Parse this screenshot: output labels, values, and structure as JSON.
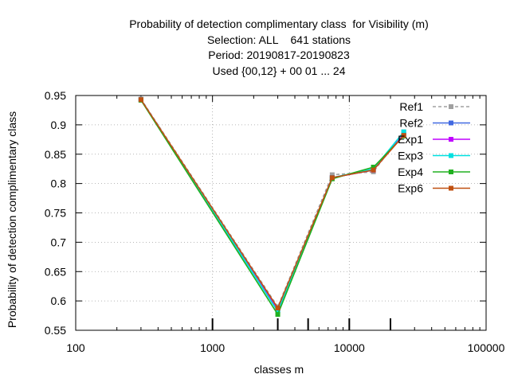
{
  "chart_data": {
    "type": "line",
    "title": [
      "Probability of detection complimentary class  for Visibility (m)",
      "Selection: ALL    641 stations",
      "Period: 20190817-20190823",
      "Used {00,12} + 00 01 ... 24"
    ],
    "xlabel": "classes m",
    "ylabel": "Probability of detection complimentary class",
    "xscale": "log",
    "xlim": [
      100,
      100000
    ],
    "ylim": [
      0.55,
      0.95
    ],
    "x_ticks": [
      "100",
      "1000",
      "10000",
      "100000"
    ],
    "y_ticks": [
      "0.55",
      "0.6",
      "0.65",
      "0.7",
      "0.75",
      "0.8",
      "0.85",
      "0.9",
      "0.95"
    ],
    "x_tick_values": [
      100,
      1000,
      10000,
      100000
    ],
    "y_tick_values": [
      0.55,
      0.6,
      0.65,
      0.7,
      0.75,
      0.8,
      0.85,
      0.9,
      0.95
    ],
    "grid": true,
    "legend_position": "top-right",
    "class_markers_x": [
      1000,
      3000,
      5000,
      10000,
      20000
    ],
    "x": [
      300,
      3000,
      7500,
      15000,
      25000
    ],
    "series": [
      {
        "name": "Ref1",
        "color": "#a0a0a0",
        "dashed": true,
        "values": [
          0.944,
          0.59,
          0.815,
          0.82,
          0.888
        ]
      },
      {
        "name": "Ref2",
        "color": "#4169e1",
        "dashed": false,
        "values": [
          0.943,
          0.585,
          0.81,
          0.823,
          0.884
        ]
      },
      {
        "name": "Exp1",
        "color": "#c000ff",
        "dashed": false,
        "values": [
          0.943,
          0.584,
          0.81,
          0.823,
          0.883
        ]
      },
      {
        "name": "Exp3",
        "color": "#00e0e0",
        "dashed": false,
        "values": [
          0.943,
          0.582,
          0.81,
          0.825,
          0.888
        ]
      },
      {
        "name": "Exp4",
        "color": "#20b020",
        "dashed": false,
        "values": [
          0.942,
          0.577,
          0.808,
          0.828,
          0.881
        ]
      },
      {
        "name": "Exp6",
        "color": "#c05010",
        "dashed": false,
        "values": [
          0.943,
          0.588,
          0.81,
          0.823,
          0.882
        ]
      }
    ]
  }
}
